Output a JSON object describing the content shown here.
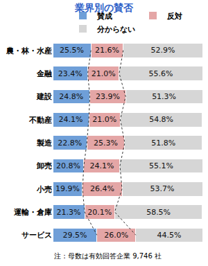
{
  "chart_data": {
    "type": "bar",
    "title": "業界別の賛否",
    "orientation": "horizontal",
    "stacked": true,
    "data_labels": true,
    "tick_labels": "y",
    "legend": "top",
    "grid": false,
    "xlim": [
      0,
      100
    ],
    "categories": [
      "農・林・水産",
      "金融",
      "建設",
      "不動産",
      "製造",
      "卸売",
      "小売",
      "運輸・倉庫",
      "サービス"
    ],
    "series": [
      {
        "name": "賛成",
        "color": "#6f9fd8",
        "values": [
          25.5,
          23.4,
          24.8,
          24.1,
          22.8,
          20.8,
          19.9,
          21.3,
          29.5
        ],
        "value_labels": [
          "25.5%",
          "23.4%",
          "24.8%",
          "24.1%",
          "22.8%",
          "20.8%",
          "19.9%",
          "21.3%",
          "29.5%"
        ]
      },
      {
        "name": "反対",
        "color": "#e4a6a6",
        "values": [
          21.6,
          21.0,
          23.9,
          21.0,
          25.3,
          24.1,
          26.4,
          20.1,
          26.0
        ],
        "value_labels": [
          "21.6%",
          "21.0%",
          "23.9%",
          "21.0%",
          "25.3%",
          "24.1%",
          "26.4%",
          "20.1%",
          "26.0%"
        ]
      },
      {
        "name": "分からない",
        "color": "#d6d6d6",
        "values": [
          52.9,
          55.6,
          51.3,
          54.8,
          51.8,
          55.1,
          53.7,
          58.5,
          44.5
        ],
        "value_labels": [
          "52.9%",
          "55.6%",
          "51.3%",
          "54.8%",
          "51.8%",
          "55.1%",
          "53.7%",
          "58.5%",
          "44.5%"
        ]
      }
    ],
    "note": "注：母数は有効回答企業 9,746 社"
  }
}
